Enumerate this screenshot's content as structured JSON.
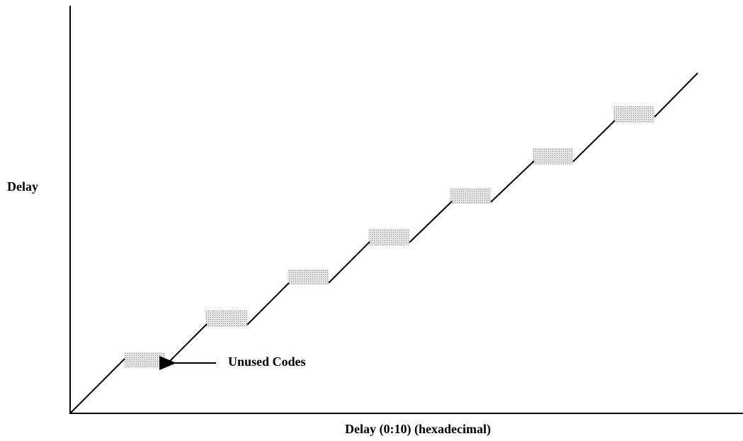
{
  "y_axis_label": "Delay",
  "x_axis_label": "Delay (0:10) (hexadecimal)",
  "annotation": "Unused Codes"
}
